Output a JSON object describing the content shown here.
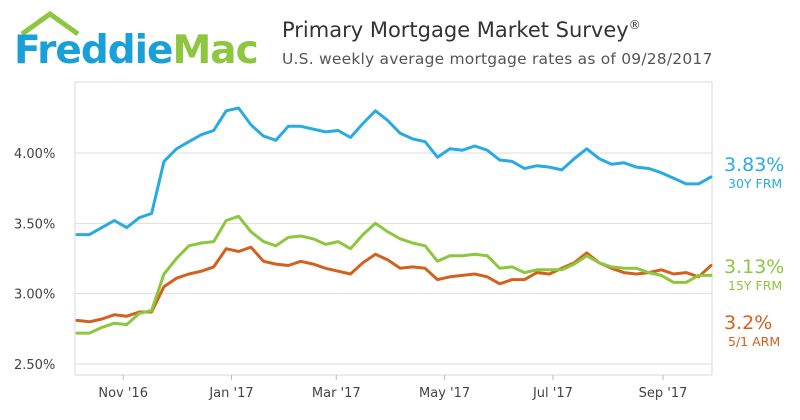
{
  "header": {
    "logo_part1": "Freddie",
    "logo_part2": "Mac",
    "title": "Primary Mortgage Market Survey",
    "title_mark": "®",
    "subtitle": "U.S. weekly average mortgage rates as of 09/28/2017"
  },
  "colors": {
    "logo_blue": "#1aa0d8",
    "logo_green": "#8dc63f",
    "frm30": "#29abe2",
    "frm15": "#8dc63f",
    "arm51": "#d4601e"
  },
  "icons": {
    "logo": "house-roof-icon"
  },
  "chart_data": {
    "type": "line",
    "title": "Primary Mortgage Market Survey",
    "subtitle": "U.S. weekly average mortgage rates as of 09/28/2017",
    "xlabel": "",
    "ylabel": "",
    "ylim": [
      2.5,
      4.4
    ],
    "yticks": [
      2.5,
      3.0,
      3.5,
      4.0
    ],
    "ytick_labels": [
      "2.50%",
      "3.00%",
      "3.50%",
      "4.00%"
    ],
    "xtick_labels": [
      "Nov '16",
      "Jan '17",
      "Mar '17",
      "May '17",
      "Jul '17",
      "Sep '17"
    ],
    "grid": true,
    "legend": "end-labels",
    "x": [
      "2016-10-06",
      "2016-10-13",
      "2016-10-20",
      "2016-10-27",
      "2016-11-03",
      "2016-11-10",
      "2016-11-17",
      "2016-11-23",
      "2016-12-01",
      "2016-12-08",
      "2016-12-15",
      "2016-12-22",
      "2016-12-29",
      "2017-01-05",
      "2017-01-12",
      "2017-01-19",
      "2017-01-26",
      "2017-02-02",
      "2017-02-09",
      "2017-02-16",
      "2017-02-23",
      "2017-03-02",
      "2017-03-09",
      "2017-03-16",
      "2017-03-23",
      "2017-03-30",
      "2017-04-06",
      "2017-04-13",
      "2017-04-20",
      "2017-04-27",
      "2017-05-04",
      "2017-05-11",
      "2017-05-18",
      "2017-05-25",
      "2017-06-01",
      "2017-06-08",
      "2017-06-15",
      "2017-06-22",
      "2017-06-29",
      "2017-07-06",
      "2017-07-13",
      "2017-07-20",
      "2017-07-27",
      "2017-08-03",
      "2017-08-10",
      "2017-08-17",
      "2017-08-24",
      "2017-08-31",
      "2017-09-07",
      "2017-09-14",
      "2017-09-21",
      "2017-09-28"
    ],
    "series": [
      {
        "name": "30Y FRM",
        "end_value": "3.83%",
        "values": [
          3.42,
          3.42,
          3.47,
          3.52,
          3.47,
          3.54,
          3.57,
          3.94,
          4.03,
          4.08,
          4.13,
          4.16,
          4.3,
          4.32,
          4.2,
          4.12,
          4.09,
          4.19,
          4.19,
          4.17,
          4.15,
          4.16,
          4.11,
          4.21,
          4.3,
          4.23,
          4.14,
          4.1,
          4.08,
          3.97,
          4.03,
          4.02,
          4.05,
          4.02,
          3.95,
          3.94,
          3.89,
          3.91,
          3.9,
          3.88,
          3.96,
          4.03,
          3.96,
          3.92,
          3.93,
          3.9,
          3.89,
          3.86,
          3.82,
          3.78,
          3.78,
          3.83
        ]
      },
      {
        "name": "15Y FRM",
        "end_value": "3.13%",
        "values": [
          2.72,
          2.72,
          2.76,
          2.79,
          2.78,
          2.86,
          2.88,
          3.14,
          3.25,
          3.34,
          3.36,
          3.37,
          3.52,
          3.55,
          3.44,
          3.37,
          3.34,
          3.4,
          3.41,
          3.39,
          3.35,
          3.37,
          3.32,
          3.42,
          3.5,
          3.44,
          3.39,
          3.36,
          3.34,
          3.23,
          3.27,
          3.27,
          3.28,
          3.27,
          3.18,
          3.19,
          3.15,
          3.17,
          3.17,
          3.17,
          3.21,
          3.27,
          3.22,
          3.19,
          3.18,
          3.18,
          3.15,
          3.13,
          3.08,
          3.08,
          3.13,
          3.13
        ]
      },
      {
        "name": "5/1 ARM",
        "end_value": "3.2%",
        "values": [
          2.81,
          2.8,
          2.82,
          2.85,
          2.84,
          2.87,
          2.87,
          3.05,
          3.11,
          3.14,
          3.16,
          3.19,
          3.32,
          3.3,
          3.33,
          3.23,
          3.21,
          3.2,
          3.23,
          3.21,
          3.18,
          3.16,
          3.14,
          3.22,
          3.28,
          3.24,
          3.18,
          3.19,
          3.18,
          3.1,
          3.12,
          3.13,
          3.14,
          3.12,
          3.07,
          3.1,
          3.1,
          3.15,
          3.14,
          3.18,
          3.22,
          3.29,
          3.22,
          3.18,
          3.15,
          3.14,
          3.15,
          3.17,
          3.14,
          3.15,
          3.12,
          3.2
        ]
      }
    ]
  }
}
